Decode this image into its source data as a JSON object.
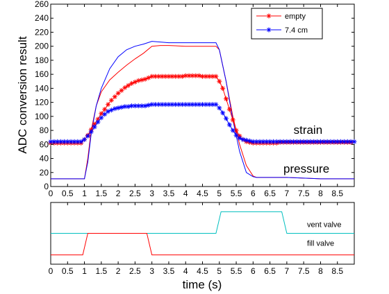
{
  "chart_data": [
    {
      "type": "line",
      "ylabel": "ADC conversion result",
      "xlim": [
        0,
        9
      ],
      "ylim": [
        0,
        260
      ],
      "x_ticks": [
        "0",
        "0.5",
        "1",
        "1.5",
        "2",
        "2.5",
        "3",
        "3.5",
        "4",
        "4.5",
        "5",
        "5.5",
        "6",
        "6.5",
        "7",
        "7.5",
        "8",
        "8.5"
      ],
      "y_ticks": [
        "0",
        "20",
        "40",
        "60",
        "80",
        "100",
        "120",
        "140",
        "160",
        "180",
        "200",
        "220",
        "240",
        "260"
      ],
      "grid": false,
      "legend_position": "top-right",
      "legend": [
        {
          "name": "empty",
          "color": "#ff0000",
          "marker": "*"
        },
        {
          "name": "7.4 cm",
          "color": "#0000ff",
          "marker": "*"
        }
      ],
      "annotations": [
        {
          "text": "strain",
          "x": 7.2,
          "y": 75
        },
        {
          "text": "pressure",
          "x": 6.9,
          "y": 20
        }
      ],
      "series": [
        {
          "name": "empty",
          "color": "#ff0000",
          "marker": "none",
          "points": [
            [
              0,
              11
            ],
            [
              1,
              11
            ],
            [
              1.1,
              40
            ],
            [
              1.2,
              80
            ],
            [
              1.35,
              115
            ],
            [
              1.5,
              135
            ],
            [
              1.75,
              152
            ],
            [
              2,
              163
            ],
            [
              2.25,
              173
            ],
            [
              2.5,
              182
            ],
            [
              2.75,
              190
            ],
            [
              3,
              200
            ],
            [
              3.25,
              201
            ],
            [
              3.5,
              201
            ],
            [
              4,
              200
            ],
            [
              4.5,
              200
            ],
            [
              4.9,
              200
            ],
            [
              5,
              195
            ],
            [
              5.2,
              150
            ],
            [
              5.4,
              100
            ],
            [
              5.6,
              60
            ],
            [
              5.8,
              30
            ],
            [
              6,
              15
            ],
            [
              6.1,
              13
            ],
            [
              7,
              13
            ],
            [
              8,
              11
            ],
            [
              9,
              11
            ]
          ]
        },
        {
          "name": "7.4 cm",
          "color": "#0000ff",
          "marker": "none",
          "points": [
            [
              0,
              11
            ],
            [
              1,
              11
            ],
            [
              1.1,
              35
            ],
            [
              1.2,
              75
            ],
            [
              1.35,
              115
            ],
            [
              1.5,
              140
            ],
            [
              1.75,
              168
            ],
            [
              2,
              185
            ],
            [
              2.25,
              195
            ],
            [
              2.5,
              200
            ],
            [
              2.75,
              203
            ],
            [
              3,
              207
            ],
            [
              3.25,
              206
            ],
            [
              3.5,
              205
            ],
            [
              4,
              205
            ],
            [
              4.5,
              205
            ],
            [
              4.9,
              205
            ],
            [
              5,
              195
            ],
            [
              5.2,
              150
            ],
            [
              5.4,
              95
            ],
            [
              5.6,
              50
            ],
            [
              5.8,
              20
            ],
            [
              6,
              14
            ],
            [
              6.1,
              13
            ],
            [
              7,
              13
            ],
            [
              8,
              11
            ],
            [
              9,
              11
            ]
          ]
        },
        {
          "name": "empty",
          "color": "#ff0000",
          "marker": "*",
          "points": [
            [
              0,
              62
            ],
            [
              0.1,
              62
            ],
            [
              0.2,
              62
            ],
            [
              0.3,
              62
            ],
            [
              0.4,
              62
            ],
            [
              0.5,
              62
            ],
            [
              0.6,
              62
            ],
            [
              0.7,
              62
            ],
            [
              0.8,
              62
            ],
            [
              0.9,
              62
            ],
            [
              1,
              67
            ],
            [
              1.1,
              73
            ],
            [
              1.2,
              81
            ],
            [
              1.3,
              89
            ],
            [
              1.4,
              96
            ],
            [
              1.5,
              104
            ],
            [
              1.6,
              110
            ],
            [
              1.7,
              117
            ],
            [
              1.8,
              123
            ],
            [
              1.9,
              128
            ],
            [
              2,
              133
            ],
            [
              2.1,
              137
            ],
            [
              2.2,
              141
            ],
            [
              2.3,
              144
            ],
            [
              2.4,
              147
            ],
            [
              2.5,
              149
            ],
            [
              2.6,
              151
            ],
            [
              2.7,
              152
            ],
            [
              2.8,
              153
            ],
            [
              2.9,
              155
            ],
            [
              3,
              157
            ],
            [
              3.1,
              157
            ],
            [
              3.2,
              157
            ],
            [
              3.3,
              157
            ],
            [
              3.4,
              157
            ],
            [
              3.5,
              157
            ],
            [
              3.6,
              157
            ],
            [
              3.7,
              157
            ],
            [
              3.8,
              157
            ],
            [
              3.9,
              157
            ],
            [
              4,
              158
            ],
            [
              4.1,
              158
            ],
            [
              4.2,
              158
            ],
            [
              4.3,
              158
            ],
            [
              4.4,
              158
            ],
            [
              4.5,
              157
            ],
            [
              4.6,
              157
            ],
            [
              4.7,
              157
            ],
            [
              4.8,
              157
            ],
            [
              4.9,
              157
            ],
            [
              5,
              150
            ],
            [
              5.1,
              140
            ],
            [
              5.2,
              125
            ],
            [
              5.3,
              110
            ],
            [
              5.4,
              95
            ],
            [
              5.5,
              80
            ],
            [
              5.6,
              72
            ],
            [
              5.7,
              67
            ],
            [
              5.8,
              64
            ],
            [
              5.9,
              63
            ],
            [
              6,
              62
            ],
            [
              6.1,
              62
            ],
            [
              6.2,
              62
            ],
            [
              6.3,
              62
            ],
            [
              6.4,
              62
            ],
            [
              6.5,
              62
            ],
            [
              6.6,
              62
            ],
            [
              6.7,
              62
            ],
            [
              6.8,
              63
            ],
            [
              6.9,
              63
            ],
            [
              7,
              63
            ],
            [
              7.1,
              63
            ],
            [
              7.2,
              63
            ],
            [
              7.3,
              63
            ],
            [
              7.4,
              63
            ],
            [
              7.5,
              63
            ],
            [
              7.6,
              63
            ],
            [
              7.7,
              63
            ],
            [
              7.8,
              63
            ],
            [
              7.9,
              63
            ],
            [
              8,
              63
            ],
            [
              8.1,
              63
            ],
            [
              8.2,
              63
            ],
            [
              8.3,
              63
            ],
            [
              8.4,
              63
            ],
            [
              8.5,
              63
            ],
            [
              8.6,
              63
            ],
            [
              8.7,
              63
            ],
            [
              8.8,
              63
            ],
            [
              8.9,
              63
            ]
          ]
        },
        {
          "name": "7.4 cm",
          "color": "#0000ff",
          "marker": "*",
          "points": [
            [
              0,
              64
            ],
            [
              0.1,
              64
            ],
            [
              0.2,
              64
            ],
            [
              0.3,
              64
            ],
            [
              0.4,
              64
            ],
            [
              0.5,
              64
            ],
            [
              0.6,
              64
            ],
            [
              0.7,
              64
            ],
            [
              0.8,
              64
            ],
            [
              0.9,
              64
            ],
            [
              1,
              67
            ],
            [
              1.1,
              72
            ],
            [
              1.2,
              78
            ],
            [
              1.3,
              85
            ],
            [
              1.4,
              92
            ],
            [
              1.5,
              98
            ],
            [
              1.6,
              103
            ],
            [
              1.7,
              107
            ],
            [
              1.8,
              109
            ],
            [
              1.9,
              111
            ],
            [
              2,
              112
            ],
            [
              2.1,
              113
            ],
            [
              2.2,
              114
            ],
            [
              2.3,
              114
            ],
            [
              2.4,
              115
            ],
            [
              2.5,
              115
            ],
            [
              2.6,
              115
            ],
            [
              2.7,
              115
            ],
            [
              2.8,
              115
            ],
            [
              2.9,
              116
            ],
            [
              3,
              117
            ],
            [
              3.1,
              117
            ],
            [
              3.2,
              117
            ],
            [
              3.3,
              117
            ],
            [
              3.4,
              117
            ],
            [
              3.5,
              117
            ],
            [
              3.6,
              117
            ],
            [
              3.7,
              117
            ],
            [
              3.8,
              117
            ],
            [
              3.9,
              117
            ],
            [
              4,
              117
            ],
            [
              4.1,
              117
            ],
            [
              4.2,
              117
            ],
            [
              4.3,
              117
            ],
            [
              4.4,
              117
            ],
            [
              4.5,
              117
            ],
            [
              4.6,
              117
            ],
            [
              4.7,
              117
            ],
            [
              4.8,
              117
            ],
            [
              4.9,
              117
            ],
            [
              5,
              112
            ],
            [
              5.1,
              105
            ],
            [
              5.2,
              97
            ],
            [
              5.3,
              88
            ],
            [
              5.4,
              80
            ],
            [
              5.5,
              73
            ],
            [
              5.6,
              69
            ],
            [
              5.7,
              67
            ],
            [
              5.8,
              66
            ],
            [
              5.9,
              65
            ],
            [
              6,
              64
            ],
            [
              6.1,
              64
            ],
            [
              6.2,
              64
            ],
            [
              6.3,
              64
            ],
            [
              6.4,
              64
            ],
            [
              6.5,
              64
            ],
            [
              6.6,
              64
            ],
            [
              6.7,
              64
            ],
            [
              6.8,
              64
            ],
            [
              6.9,
              64
            ],
            [
              7,
              64
            ],
            [
              7.1,
              64
            ],
            [
              7.2,
              64
            ],
            [
              7.3,
              64
            ],
            [
              7.4,
              64
            ],
            [
              7.5,
              64
            ],
            [
              7.6,
              64
            ],
            [
              7.7,
              64
            ],
            [
              7.8,
              64
            ],
            [
              7.9,
              64
            ],
            [
              8,
              64
            ],
            [
              8.1,
              64
            ],
            [
              8.2,
              64
            ],
            [
              8.3,
              64
            ],
            [
              8.4,
              64
            ],
            [
              8.5,
              64
            ],
            [
              8.6,
              64
            ],
            [
              8.7,
              64
            ],
            [
              8.8,
              64
            ],
            [
              8.9,
              64
            ],
            [
              9,
              64
            ]
          ]
        }
      ]
    },
    {
      "type": "line",
      "xlabel": "time (s)",
      "xlim": [
        0,
        9
      ],
      "ylim": [
        0,
        1
      ],
      "x_ticks": [
        "0",
        "0.5",
        "1",
        "1.5",
        "2",
        "2.5",
        "3",
        "3.5",
        "4",
        "4.5",
        "5",
        "5.5",
        "6",
        "6.5",
        "7",
        "7.5",
        "8",
        "8.5"
      ],
      "grid": false,
      "annotations": [
        {
          "text": "vent valve",
          "x": 7.6,
          "y": 0.6
        },
        {
          "text": "fill valve",
          "x": 7.6,
          "y": 0.3
        }
      ],
      "series": [
        {
          "name": "vent valve",
          "color": "#00bfbf",
          "points": [
            [
              0,
              0.5
            ],
            [
              4.9,
              0.5
            ],
            [
              5.05,
              0.85
            ],
            [
              6.85,
              0.85
            ],
            [
              7,
              0.5
            ],
            [
              9,
              0.5
            ]
          ]
        },
        {
          "name": "fill valve",
          "color": "#ff0000",
          "points": [
            [
              0,
              0.15
            ],
            [
              0.95,
              0.15
            ],
            [
              1.1,
              0.5
            ],
            [
              2.85,
              0.5
            ],
            [
              3,
              0.15
            ],
            [
              9,
              0.15
            ]
          ]
        }
      ]
    }
  ]
}
